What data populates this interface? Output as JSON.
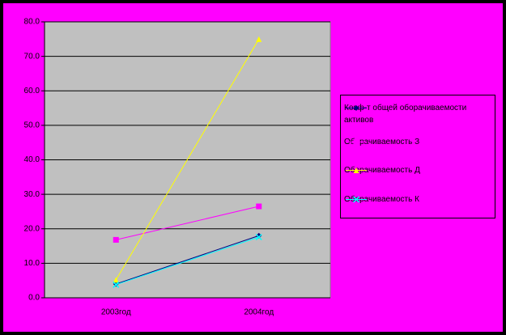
{
  "chart_data": {
    "type": "line",
    "categories": [
      "2003год",
      "2004год"
    ],
    "series": [
      {
        "name": "Коэф-т общей оборачиваемости активов",
        "color": "#000080",
        "marker": "diamond",
        "values": [
          4.0,
          18.0
        ]
      },
      {
        "name": "Оборачиваемость З",
        "color": "#ff00ff",
        "marker": "square",
        "values": [
          16.8,
          26.5
        ]
      },
      {
        "name": "Оборачиваемость Д",
        "color": "#ffff00",
        "marker": "triangle",
        "values": [
          5.2,
          75.0
        ]
      },
      {
        "name": "Оборачиваемость К",
        "color": "#00ffff",
        "marker": "x",
        "values": [
          3.8,
          17.6
        ]
      }
    ],
    "ylim": [
      0,
      80
    ],
    "yticks": [
      {
        "value": 0,
        "label": "0.0"
      },
      {
        "value": 10,
        "label": "10.0"
      },
      {
        "value": 20,
        "label": "20.0"
      },
      {
        "value": 30,
        "label": "30.0"
      },
      {
        "value": 40,
        "label": "40.0"
      },
      {
        "value": 50,
        "label": "50.0"
      },
      {
        "value": 60,
        "label": "60.0"
      },
      {
        "value": 70,
        "label": "70.0"
      },
      {
        "value": 80,
        "label": "80.0"
      }
    ],
    "grid": true,
    "legend": "right"
  }
}
